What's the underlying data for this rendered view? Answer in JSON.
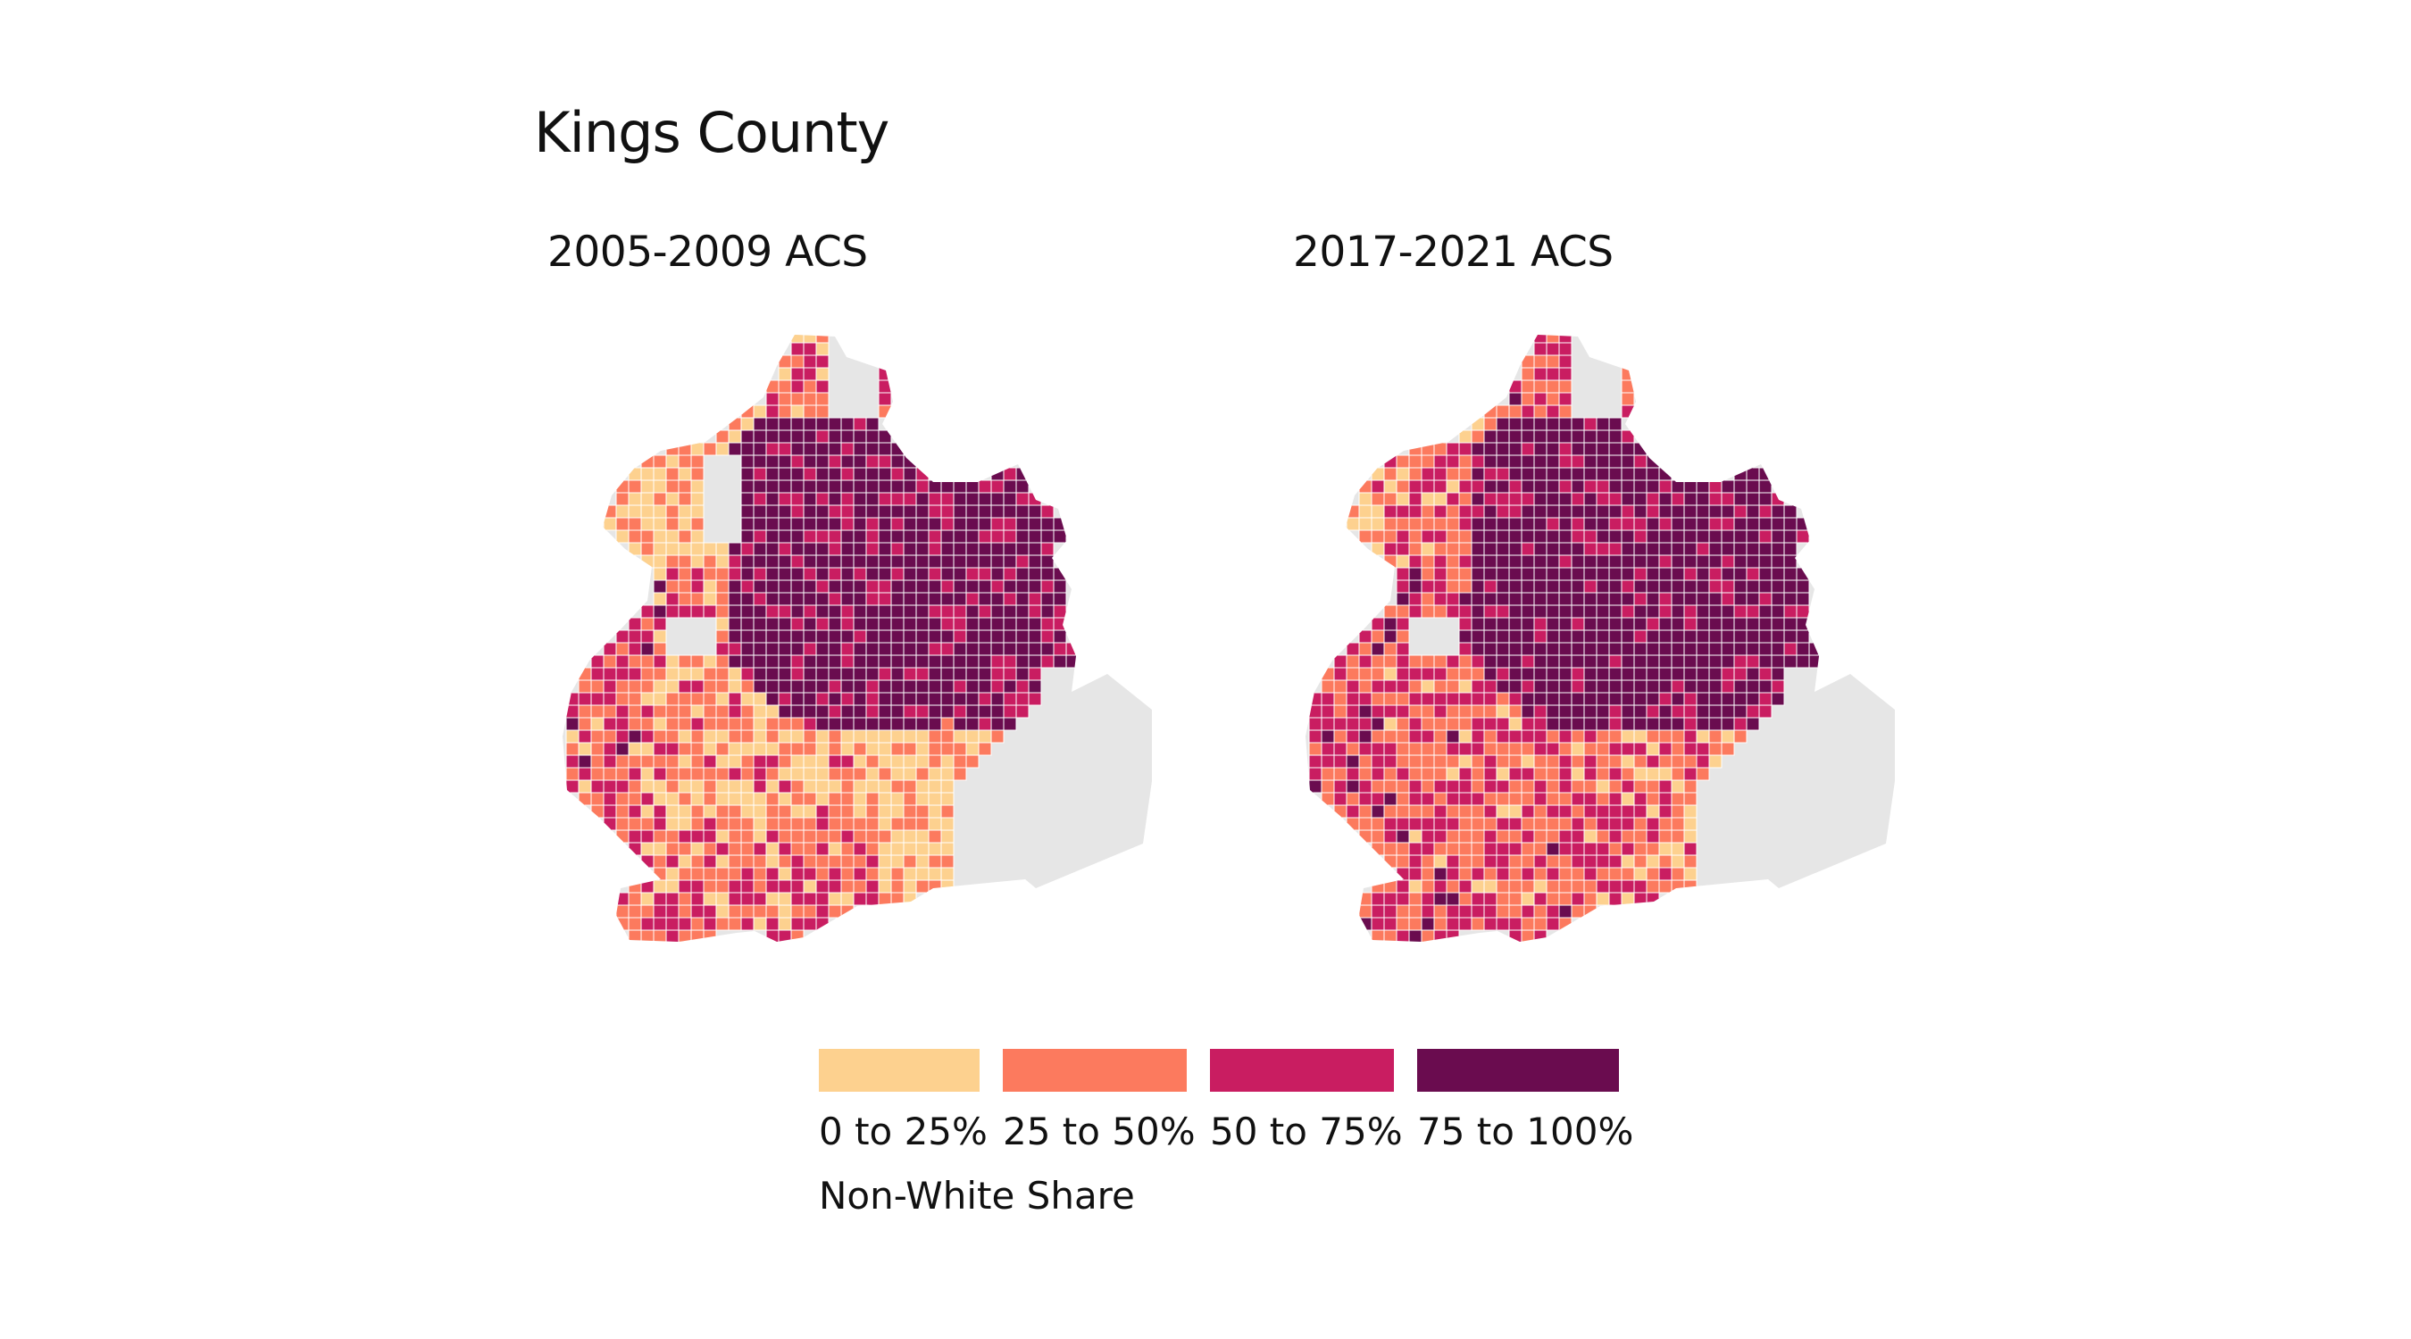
{
  "title": "Kings County",
  "panels": [
    {
      "label": "2005-2009 ACS"
    },
    {
      "label": "2017-2021 ACS"
    }
  ],
  "legend": {
    "title": "Non-White Share",
    "items": [
      {
        "label": "0 to 25%",
        "color": "#FDD18F"
      },
      {
        "label": "25 to 50%",
        "color": "#FC7A5E"
      },
      {
        "label": "50 to 75%",
        "color": "#C91D61"
      },
      {
        "label": "75 to 100%",
        "color": "#6A0C4F"
      }
    ]
  },
  "colors": {
    "missing": "#E6E6E6",
    "border": "#FFFFFF"
  }
}
